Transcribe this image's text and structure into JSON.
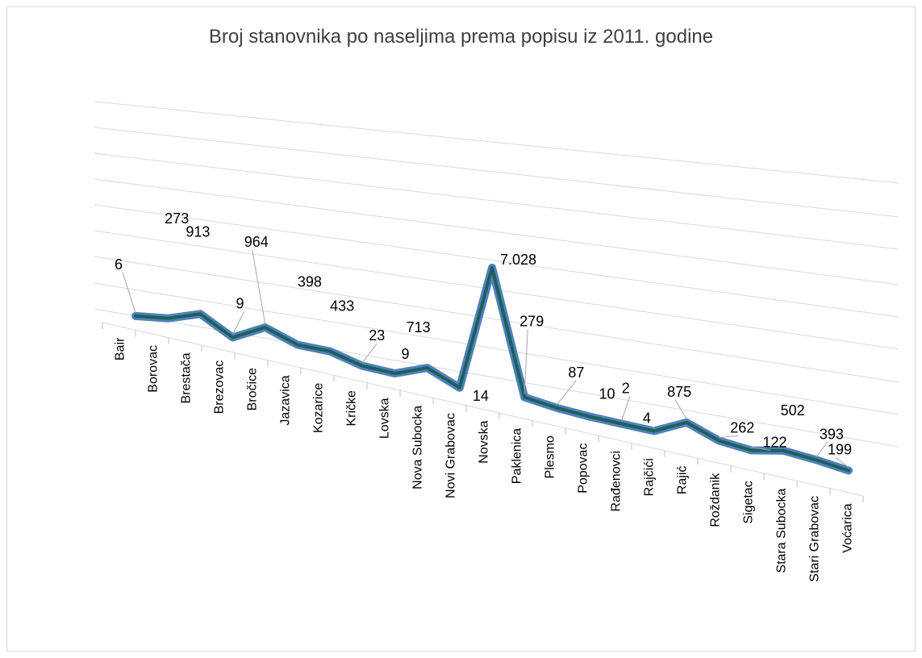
{
  "chart_data": {
    "type": "line",
    "title": "Broj stanovnika po naseljima prema popisu iz 2011. godine",
    "xlabel": "",
    "ylabel": "",
    "grid": true,
    "categories": [
      "Bair",
      "Borovac",
      "Brestača",
      "Brezovac",
      "Bročice",
      "Jazavica",
      "Kozarice",
      "Kričke",
      "Lovska",
      "Nova Subocka",
      "Novi Grabovac",
      "Novska",
      "Paklenica",
      "Plesmo",
      "Popovac",
      "Rađenovci",
      "Rajčići",
      "Rajić",
      "Roždanik",
      "Sigetac",
      "Stara Subocka",
      "Stari Grabovac",
      "Voćarica"
    ],
    "series": [
      {
        "values": [
          6,
          273,
          913,
          9,
          964,
          398,
          433,
          23,
          9,
          713,
          14,
          7028,
          279,
          87,
          10,
          2,
          4,
          875,
          262,
          122,
          502,
          393,
          199
        ],
        "labels": [
          "6",
          "273",
          "913",
          "9",
          "964",
          "398",
          "433",
          "23",
          "9",
          "713",
          "14",
          "7.028",
          "279",
          "87",
          "10",
          "2",
          "4",
          "875",
          "262",
          "122",
          "502",
          "393",
          "199"
        ]
      }
    ],
    "colors": {
      "line": "#4f81bd",
      "line_core": "#1f5f5a",
      "grid": "#d9d9d9"
    }
  }
}
